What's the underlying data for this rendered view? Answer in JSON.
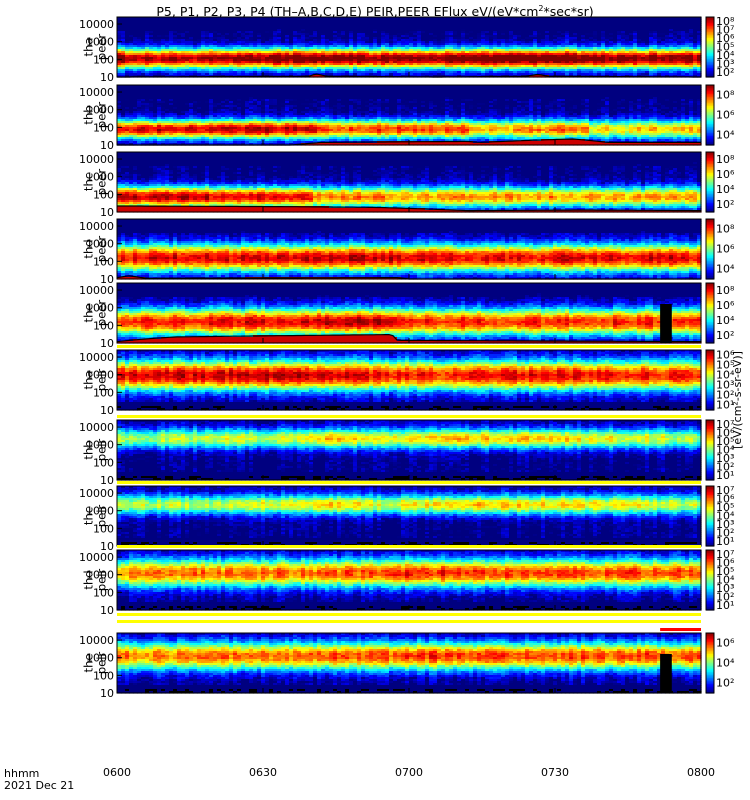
{
  "title_parts": [
    "P5, P1, P2, P3, P4 (TH–A,B,C,D,E) PEIR,PEER EFlux eV/(eV*cm",
    "2",
    "*sec*sr)"
  ],
  "footer": {
    "hhmm": "hhmm",
    "date": "2021 Dec 21"
  },
  "colors": {
    "bg": "#ffffff",
    "frame": "#000000",
    "sat": "#ff0000",
    "sat_alt": "#ffff00"
  },
  "chart_data": {
    "type": "heatmap",
    "xlabel": "hhmm",
    "x_ticks": [
      "0600",
      "0630",
      "0700",
      "0730",
      "0800"
    ],
    "x_range": [
      "0600",
      "0800"
    ],
    "y_scale": "log",
    "y_range_eV": [
      10,
      25000
    ],
    "y_ticks": [
      "10",
      "100",
      "1000",
      "10000"
    ],
    "panels": [
      {
        "probe": "tha",
        "species": "peer",
        "ylabel": [
          "tha",
          "peer"
        ],
        "cbar_ticks": [
          "10²",
          "10³",
          "10⁴",
          "10⁵",
          "10⁶",
          "10⁷",
          "10⁸"
        ],
        "cbar_label": "[eV/(cm²-s-sr-eV)]",
        "level_track": [
          [
            0,
            1.0
          ],
          [
            0.1,
            0.95
          ],
          [
            0.3,
            1.05
          ],
          [
            0.5,
            1.0
          ],
          [
            0.7,
            1.1
          ],
          [
            0.9,
            1.0
          ],
          [
            1,
            1.0
          ]
        ],
        "low_cutoff": [
          [
            0,
            10
          ],
          [
            0.33,
            11
          ],
          [
            0.34,
            15
          ],
          [
            0.36,
            11
          ],
          [
            0.55,
            10
          ],
          [
            0.7,
            11
          ],
          [
            0.72,
            14
          ],
          [
            0.74,
            11
          ],
          [
            1,
            10
          ]
        ],
        "peak_band_eV": [
          40,
          300
        ]
      },
      {
        "probe": "thb",
        "species": "peer",
        "ylabel": [
          "thb",
          "peer"
        ],
        "cbar_ticks": [
          "10⁴",
          "10⁶",
          "10⁸"
        ],
        "cbar_label": "[eV/(cm²-s-sr-eV)]",
        "level_track": [
          [
            0,
            0.9
          ],
          [
            0.34,
            0.95
          ],
          [
            0.35,
            0.8
          ],
          [
            0.6,
            0.85
          ],
          [
            0.61,
            0.7
          ],
          [
            0.8,
            0.8
          ],
          [
            0.81,
            0.65
          ],
          [
            1,
            0.7
          ]
        ],
        "low_cutoff": [
          [
            0,
            10
          ],
          [
            0.3,
            10
          ],
          [
            0.35,
            14
          ],
          [
            0.6,
            16
          ],
          [
            0.62,
            14
          ],
          [
            0.78,
            22
          ],
          [
            0.84,
            14
          ],
          [
            1,
            14
          ]
        ],
        "peak_band_eV": [
          30,
          200
        ]
      },
      {
        "probe": "thc",
        "species": "peer",
        "ylabel": [
          "thc",
          "peer"
        ],
        "cbar_ticks": [
          "10²",
          "10⁴",
          "10⁶",
          "10⁸"
        ],
        "cbar_label": "[eV/(cm²-s-sr-eV)]",
        "level_track": [
          [
            0,
            0.95
          ],
          [
            0.33,
            0.9
          ],
          [
            0.34,
            0.75
          ],
          [
            0.45,
            0.8
          ],
          [
            0.46,
            0.7
          ],
          [
            0.6,
            0.75
          ],
          [
            1,
            0.7
          ]
        ],
        "low_cutoff": [
          [
            0,
            22
          ],
          [
            0.3,
            20
          ],
          [
            0.45,
            18
          ],
          [
            0.6,
            12
          ],
          [
            0.8,
            13
          ],
          [
            1,
            12
          ]
        ],
        "peak_band_eV": [
          25,
          200
        ]
      },
      {
        "probe": "thd",
        "species": "peer",
        "ylabel": [
          "thd",
          "peer"
        ],
        "cbar_ticks": [
          "10⁴",
          "10⁶",
          "10⁸"
        ],
        "cbar_label": "[eV/(cm²-s-sr-eV)]",
        "level_track": [
          [
            0,
            0.85
          ],
          [
            0.05,
            0.9
          ],
          [
            0.47,
            0.95
          ],
          [
            0.48,
            0.9
          ],
          [
            1,
            0.9
          ]
        ],
        "low_cutoff": [
          [
            0,
            12
          ],
          [
            0.02,
            15
          ],
          [
            0.05,
            11
          ],
          [
            0.48,
            12
          ],
          [
            0.5,
            10
          ],
          [
            1,
            10
          ]
        ],
        "peak_band_eV": [
          40,
          600
        ]
      },
      {
        "probe": "the",
        "species": "peer",
        "ylabel": [
          "the",
          "peer"
        ],
        "cbar_ticks": [
          "10²",
          "10⁴",
          "10⁶",
          "10⁸"
        ],
        "cbar_label": "[eV/(cm²-s-sr-eV)]",
        "level_track": [
          [
            0,
            0.85
          ],
          [
            0.47,
            0.95
          ],
          [
            0.48,
            0.85
          ],
          [
            1,
            0.85
          ]
        ],
        "low_cutoff": [
          [
            0,
            12
          ],
          [
            0.1,
            22
          ],
          [
            0.47,
            30
          ],
          [
            0.48,
            14
          ],
          [
            1,
            12
          ]
        ],
        "peak_band_eV": [
          40,
          600
        ],
        "gap_block": [
          0.93,
          0.95
        ]
      },
      {
        "probe": "tha",
        "species": "peir",
        "ylabel": [
          "tha",
          "peir"
        ],
        "cbar_ticks": [
          "10¹",
          "10²",
          "10³",
          "10⁴",
          "10⁵",
          "10⁶"
        ],
        "cbar_label": "[eV/(cm²-s-sr-eV)]",
        "level_track": [
          [
            0,
            0.9
          ],
          [
            0.3,
            0.95
          ],
          [
            0.5,
            0.85
          ],
          [
            0.75,
            0.9
          ],
          [
            1,
            0.85
          ]
        ],
        "peak_band_eV": [
          200,
          4000
        ]
      },
      {
        "probe": "thb",
        "species": "peir",
        "ylabel": [
          "thb",
          "peir"
        ],
        "cbar_ticks": [
          "10¹",
          "10²",
          "10³",
          "10⁴",
          "10⁵",
          "10⁶",
          "10⁷"
        ],
        "cbar_label": "[eV/(cm²-s-sr-eV)]",
        "level_track": [
          [
            0,
            0.55
          ],
          [
            0.33,
            0.6
          ],
          [
            0.35,
            0.7
          ],
          [
            0.45,
            0.6
          ],
          [
            0.62,
            0.7
          ],
          [
            0.78,
            0.65
          ],
          [
            1,
            0.55
          ]
        ],
        "peak_band_eV": [
          800,
          6000
        ]
      },
      {
        "probe": "thc",
        "species": "peir",
        "ylabel": [
          "thc",
          "peir"
        ],
        "cbar_ticks": [
          "10¹",
          "10²",
          "10³",
          "10⁴",
          "10⁵",
          "10⁶",
          "10⁷"
        ],
        "cbar_label": "[eV/(cm²-s-sr-eV)]",
        "level_track": [
          [
            0,
            0.55
          ],
          [
            0.33,
            0.6
          ],
          [
            0.35,
            0.7
          ],
          [
            0.45,
            0.6
          ],
          [
            0.6,
            0.7
          ],
          [
            0.8,
            0.65
          ],
          [
            1,
            0.55
          ]
        ],
        "peak_band_eV": [
          800,
          6000
        ]
      },
      {
        "probe": "thd",
        "species": "peir",
        "ylabel": [
          "thd",
          "peir"
        ],
        "cbar_ticks": [
          "10¹",
          "10²",
          "10³",
          "10⁴",
          "10⁵",
          "10⁶",
          "10⁷"
        ],
        "cbar_label": "[eV/(cm²-s-sr-eV)]",
        "level_track": [
          [
            0,
            0.75
          ],
          [
            0.47,
            0.8
          ],
          [
            0.48,
            0.85
          ],
          [
            1,
            0.8
          ]
        ],
        "peak_band_eV": [
          300,
          5000
        ]
      },
      {
        "probe": "the",
        "species": "peir",
        "ylabel": [
          "the",
          "peir"
        ],
        "cbar_ticks": [
          "10²",
          "10⁴",
          "10⁶"
        ],
        "cbar_label": "[eV/(cm²-s-sr-eV)]",
        "level_track": [
          [
            0,
            0.75
          ],
          [
            0.47,
            0.8
          ],
          [
            0.48,
            0.85
          ],
          [
            1,
            0.8
          ]
        ],
        "peak_band_eV": [
          300,
          5000
        ],
        "gap_block": [
          0.93,
          0.95
        ]
      }
    ]
  }
}
